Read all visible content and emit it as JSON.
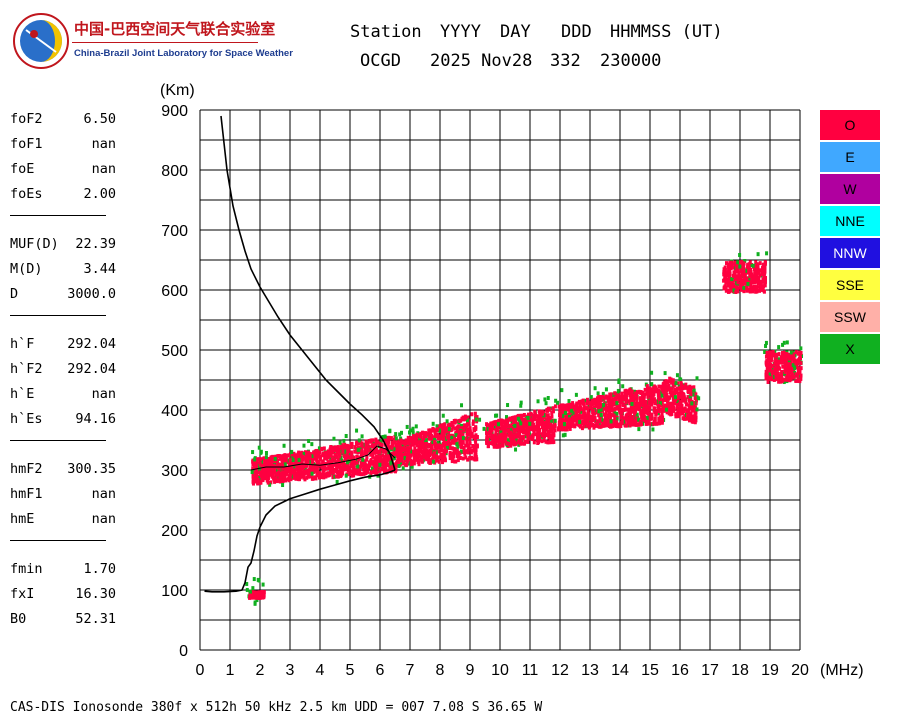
{
  "logo": {
    "cn": "中国-巴西空间天气联合实验室",
    "en": "China-Brazil Joint Laboratory for Space Weather"
  },
  "header": {
    "labels": [
      "Station",
      "YYYY",
      "DAY",
      "DDD",
      "HHMMSS (UT)"
    ],
    "values": [
      "OCGD",
      "2025 Nov28",
      "332",
      "230000"
    ]
  },
  "params": [
    {
      "group": 1,
      "name": "foF2",
      "value": "6.50"
    },
    {
      "group": 1,
      "name": "foF1",
      "value": "nan"
    },
    {
      "group": 1,
      "name": "foE",
      "value": "nan"
    },
    {
      "group": 1,
      "name": "foEs",
      "value": "2.00"
    },
    {
      "group": 2,
      "name": "MUF(D)",
      "value": "22.39"
    },
    {
      "group": 2,
      "name": "M(D)",
      "value": "3.44"
    },
    {
      "group": 2,
      "name": "D",
      "value": "3000.0"
    },
    {
      "group": 3,
      "name": "h`F",
      "value": "292.04"
    },
    {
      "group": 3,
      "name": "h`F2",
      "value": "292.04"
    },
    {
      "group": 3,
      "name": "h`E",
      "value": "nan"
    },
    {
      "group": 3,
      "name": "h`Es",
      "value": "94.16"
    },
    {
      "group": 4,
      "name": "hmF2",
      "value": "300.35"
    },
    {
      "group": 4,
      "name": "hmF1",
      "value": "nan"
    },
    {
      "group": 4,
      "name": "hmE",
      "value": "nan"
    },
    {
      "group": 5,
      "name": "fmin",
      "value": "1.70"
    },
    {
      "group": 5,
      "name": "fxI",
      "value": "16.30"
    },
    {
      "group": 5,
      "name": "B0",
      "value": "52.31"
    }
  ],
  "footer": "CAS-DIS Ionosonde 380f x 512h 50 kHz 2.5 km UDD = 007 7.08 S 36.65 W",
  "chart_data": {
    "type": "scatter",
    "xlabel": "(MHz)",
    "ylabel": "(Km)",
    "xlim": [
      0,
      20
    ],
    "ylim": [
      0,
      900
    ],
    "x_major_ticks": [
      0,
      1,
      2,
      3,
      4,
      5,
      6,
      7,
      8,
      9,
      10,
      11,
      12,
      13,
      14,
      15,
      16,
      17,
      18,
      19,
      20
    ],
    "y_major_ticks": [
      0,
      100,
      200,
      300,
      400,
      500,
      600,
      700,
      800,
      900
    ],
    "grid": true,
    "legend_position": "right",
    "legend": [
      {
        "name": "O",
        "color": "#ff0040"
      },
      {
        "name": "E",
        "color": "#40a8ff"
      },
      {
        "name": "W",
        "color": "#b0009f"
      },
      {
        "name": "NNE",
        "color": "#00ffff"
      },
      {
        "name": "NNW",
        "color": "#2010e0"
      },
      {
        "name": "SSE",
        "color": "#ffff40"
      },
      {
        "name": "SSW",
        "color": "#ffb0a8"
      },
      {
        "name": "X",
        "color": "#10b020"
      }
    ],
    "echo_regions": [
      {
        "mode": "O",
        "x_range": [
          1.7,
          6.5
        ],
        "y_start": [
          280,
          320
        ],
        "y_end": [
          300,
          360
        ]
      },
      {
        "mode": "O",
        "x_range": [
          6.5,
          9.2
        ],
        "y_start": [
          310,
          350
        ],
        "y_end": [
          320,
          400
        ]
      },
      {
        "mode": "O",
        "x_range": [
          9.5,
          11.8
        ],
        "y_start": [
          340,
          380
        ],
        "y_end": [
          350,
          410
        ]
      },
      {
        "mode": "O",
        "x_range": [
          11.9,
          15.4
        ],
        "y_start": [
          370,
          410
        ],
        "y_end": [
          380,
          450
        ]
      },
      {
        "mode": "O",
        "x_range": [
          15.4,
          16.5
        ],
        "y_start": [
          400,
          460
        ],
        "y_end": [
          380,
          440
        ]
      },
      {
        "mode": "O",
        "x_range": [
          17.4,
          18.8
        ],
        "y_start": [
          600,
          650
        ],
        "y_end": [
          600,
          650
        ]
      },
      {
        "mode": "O",
        "x_range": [
          18.8,
          20.0
        ],
        "y_start": [
          450,
          500
        ],
        "y_end": [
          450,
          500
        ]
      },
      {
        "mode": "O",
        "x_range": [
          1.6,
          2.1
        ],
        "y_start": [
          90,
          100
        ],
        "y_end": [
          90,
          100
        ]
      }
    ],
    "profile": {
      "name": "true height profile",
      "x": [
        0.7,
        0.9,
        1.1,
        1.3,
        1.5,
        1.7,
        2.0,
        2.3,
        2.6,
        3.0,
        3.4,
        3.8,
        4.2,
        4.6,
        5.0,
        5.4,
        5.8,
        6.1,
        6.35,
        6.5
      ],
      "y": [
        890,
        800,
        740,
        700,
        665,
        635,
        605,
        580,
        555,
        525,
        500,
        475,
        450,
        430,
        410,
        392,
        372,
        350,
        325,
        300
      ]
    },
    "profile_lower": {
      "x": [
        0.15,
        0.4,
        0.8,
        1.2,
        1.4,
        1.5,
        1.55,
        1.6,
        1.7,
        1.8,
        1.9,
        2.0,
        2.2,
        2.5,
        3.0,
        3.5,
        4.0,
        4.5,
        5.0,
        5.5,
        6.0,
        6.3,
        6.5
      ],
      "y": [
        98,
        97,
        97,
        98,
        100,
        112,
        125,
        138,
        145,
        165,
        190,
        205,
        225,
        240,
        252,
        260,
        268,
        275,
        282,
        288,
        292,
        296,
        300
      ]
    },
    "virtual_trace": {
      "x": [
        1.7,
        2.2,
        2.8,
        3.4,
        4.0,
        4.6,
        5.2,
        5.6,
        5.9,
        6.2,
        6.5
      ],
      "y": [
        300,
        305,
        305,
        310,
        308,
        312,
        318,
        325,
        340,
        335,
        320
      ]
    }
  }
}
